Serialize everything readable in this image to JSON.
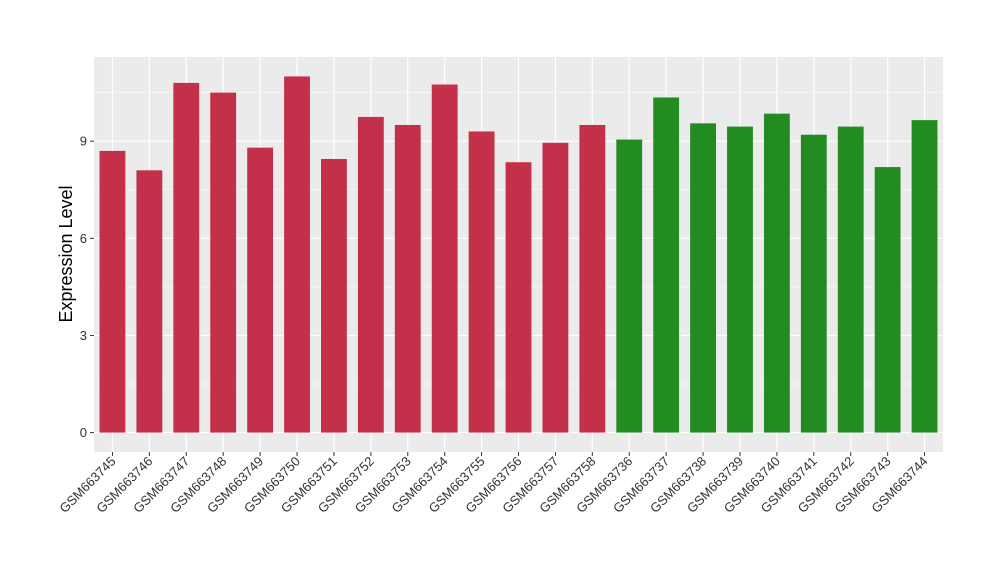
{
  "chart_data": {
    "type": "bar",
    "title": "",
    "xlabel": "",
    "ylabel": "Expression Level",
    "ylim": [
      -0.6,
      11.6
    ],
    "yticks": [
      0,
      3,
      6,
      9
    ],
    "grid": true,
    "legend": "none",
    "panel_background": "#ebebeb",
    "categories": [
      "GSM663745",
      "GSM663746",
      "GSM663747",
      "GSM663748",
      "GSM663749",
      "GSM663750",
      "GSM663751",
      "GSM663752",
      "GSM663753",
      "GSM663754",
      "GSM663755",
      "GSM663756",
      "GSM663757",
      "GSM663758",
      "GSM663736",
      "GSM663737",
      "GSM663738",
      "GSM663739",
      "GSM663740",
      "GSM663741",
      "GSM663742",
      "GSM663743",
      "GSM663744"
    ],
    "values": [
      8.7,
      8.1,
      10.8,
      10.5,
      8.8,
      11.0,
      8.45,
      9.75,
      9.5,
      10.75,
      9.3,
      8.35,
      8.95,
      9.5,
      9.05,
      10.35,
      9.55,
      9.45,
      9.85,
      9.2,
      9.45,
      8.2,
      9.65
    ],
    "colors": [
      "#c3304a",
      "#c3304a",
      "#c3304a",
      "#c3304a",
      "#c3304a",
      "#c3304a",
      "#c3304a",
      "#c3304a",
      "#c3304a",
      "#c3304a",
      "#c3304a",
      "#c3304a",
      "#c3304a",
      "#c3304a",
      "#228b22",
      "#228b22",
      "#228b22",
      "#228b22",
      "#228b22",
      "#228b22",
      "#228b22",
      "#228b22",
      "#228b22"
    ]
  }
}
